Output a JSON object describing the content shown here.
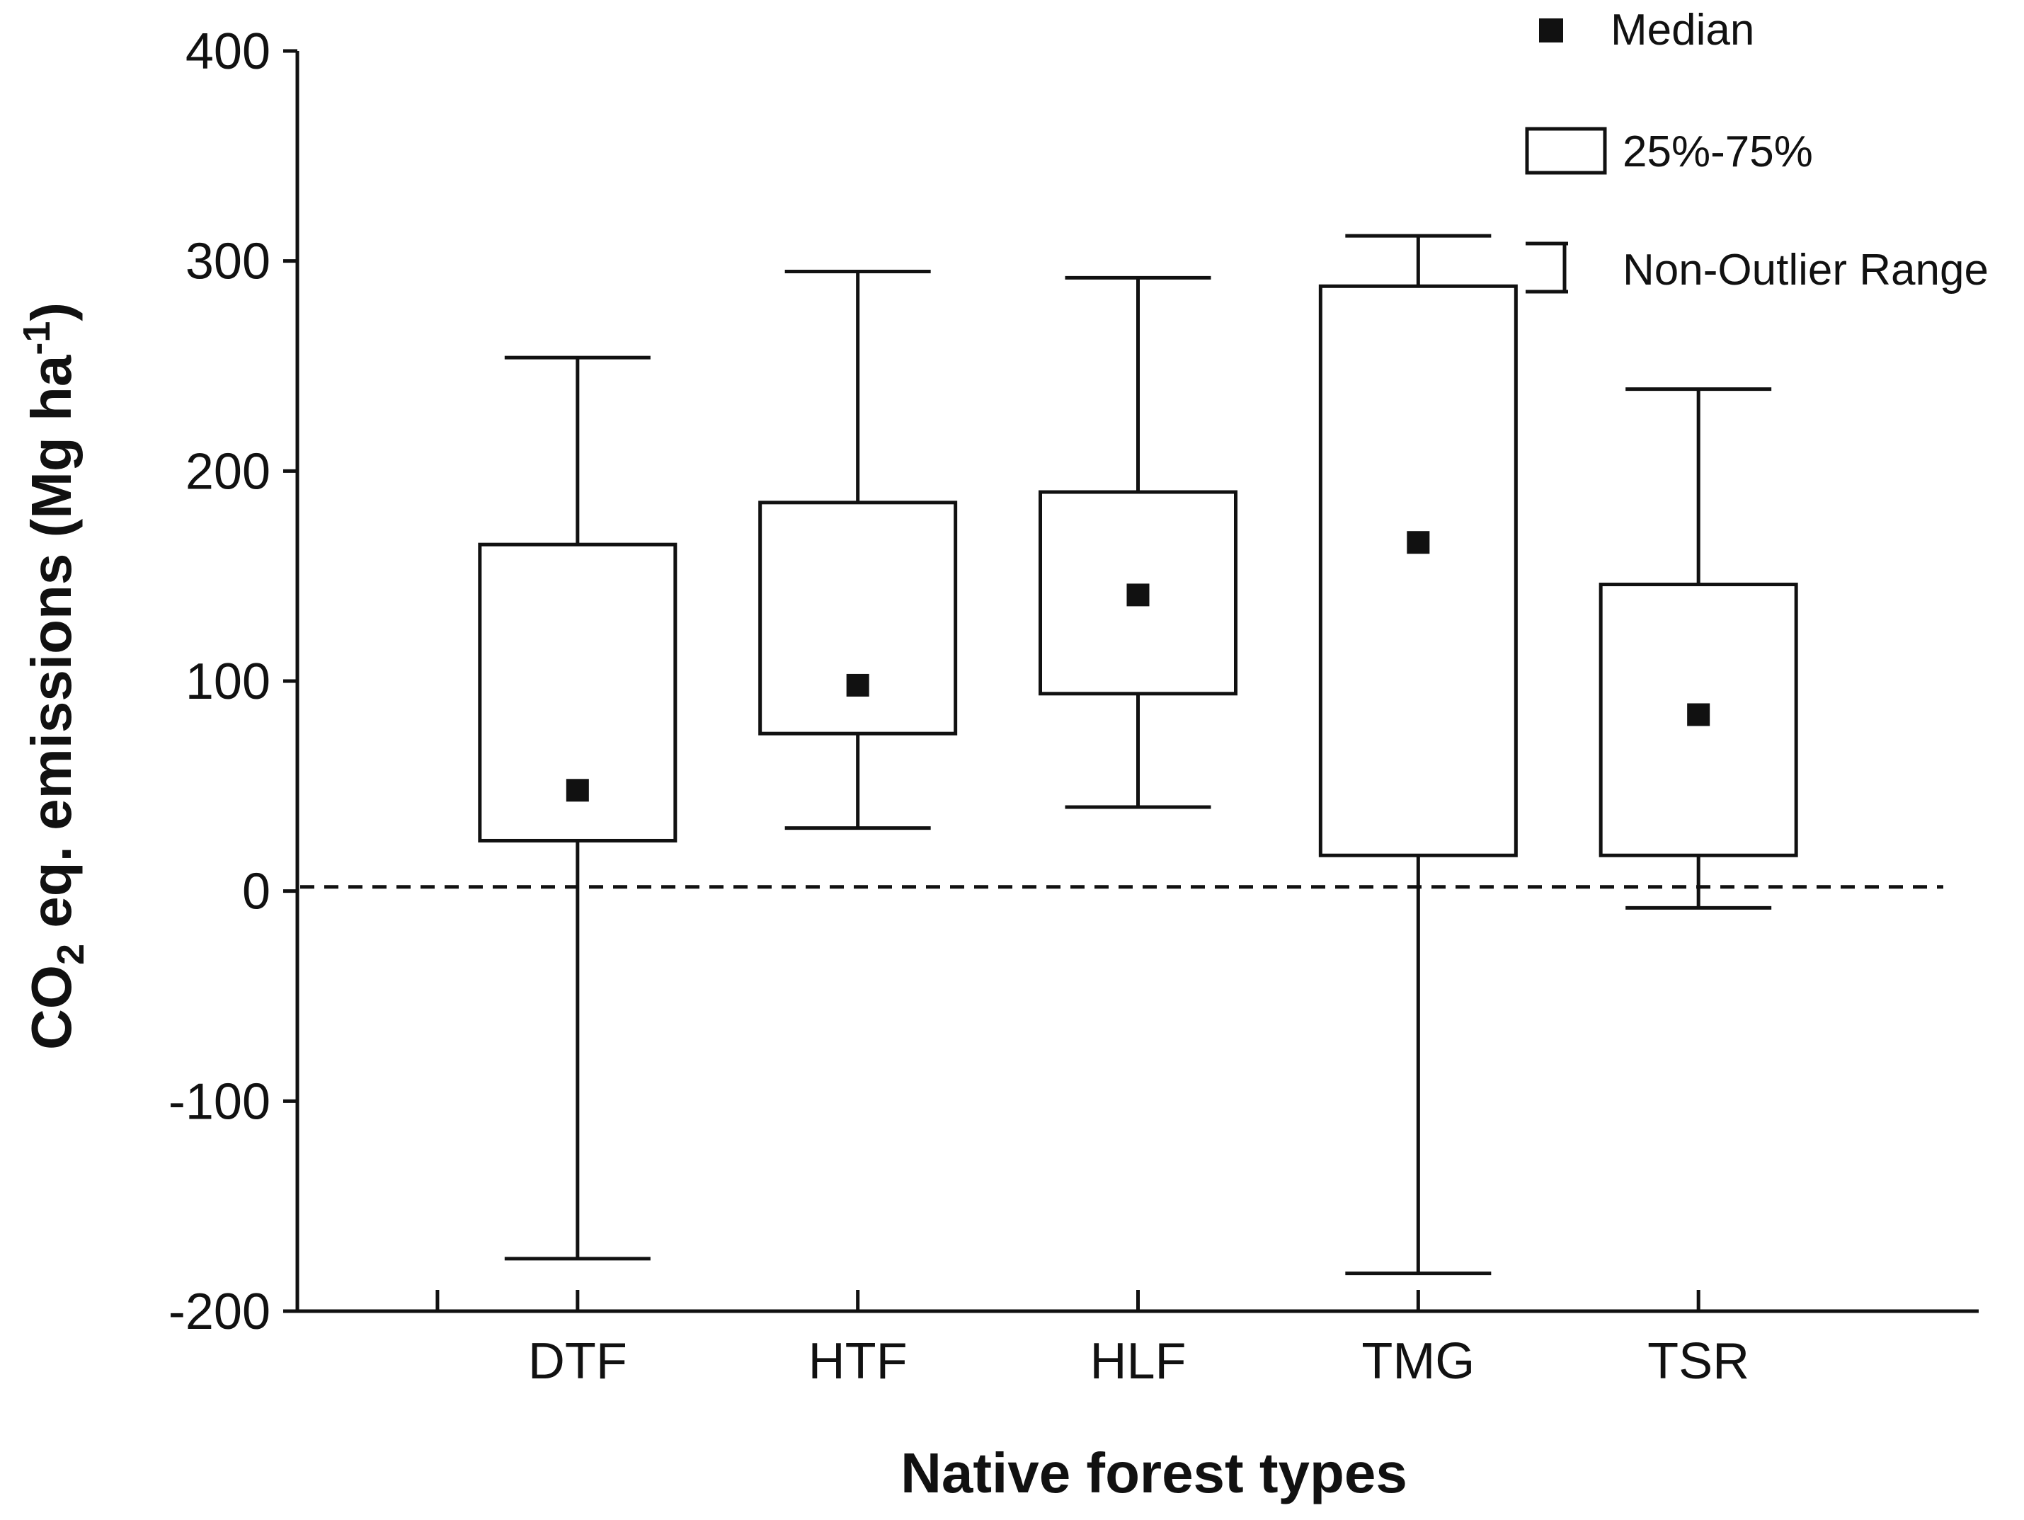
{
  "chart_data": {
    "type": "boxplot",
    "title": "",
    "xlabel": "Native forest types",
    "ylabel": {
      "prefix": "CO",
      "sub": "2",
      "middle": " eq. emissions (Mg ha",
      "sup": "-1",
      "suffix": ")"
    },
    "ylim": [
      -200,
      400
    ],
    "yticks": [
      -200,
      -100,
      0,
      100,
      200,
      300,
      400
    ],
    "ytick_labels": [
      "-200",
      "-100",
      "0",
      "100",
      "200",
      "300",
      "400"
    ],
    "x_slots": 6,
    "categories": [
      "DTF",
      "HTF",
      "HLF",
      "TMG",
      "TSR"
    ],
    "boxes": [
      {
        "category": "DTF",
        "whisker_low": -175,
        "q1": 24,
        "median": 48,
        "q3": 165,
        "whisker_high": 254
      },
      {
        "category": "HTF",
        "whisker_low": 30,
        "q1": 75,
        "median": 98,
        "q3": 185,
        "whisker_high": 295
      },
      {
        "category": "HLF",
        "whisker_low": 40,
        "q1": 94,
        "median": 141,
        "q3": 190,
        "whisker_high": 292
      },
      {
        "category": "TMG",
        "whisker_low": -182,
        "q1": 17,
        "median": 166,
        "q3": 288,
        "whisker_high": 312
      },
      {
        "category": "TSR",
        "whisker_low": -8,
        "q1": 17,
        "median": 84,
        "q3": 146,
        "whisker_high": 239
      }
    ],
    "reference_line": {
      "y": 2,
      "style": "dashed"
    },
    "legend": {
      "position": "top-right",
      "entries": [
        {
          "symbol": "median-square",
          "label": "Median"
        },
        {
          "symbol": "box",
          "label": "25%-75%"
        },
        {
          "symbol": "whisker",
          "label": "Non-Outlier Range"
        }
      ]
    },
    "colors": {
      "line": "#111111",
      "box_fill": "#ffffff",
      "background": "#ffffff"
    }
  }
}
